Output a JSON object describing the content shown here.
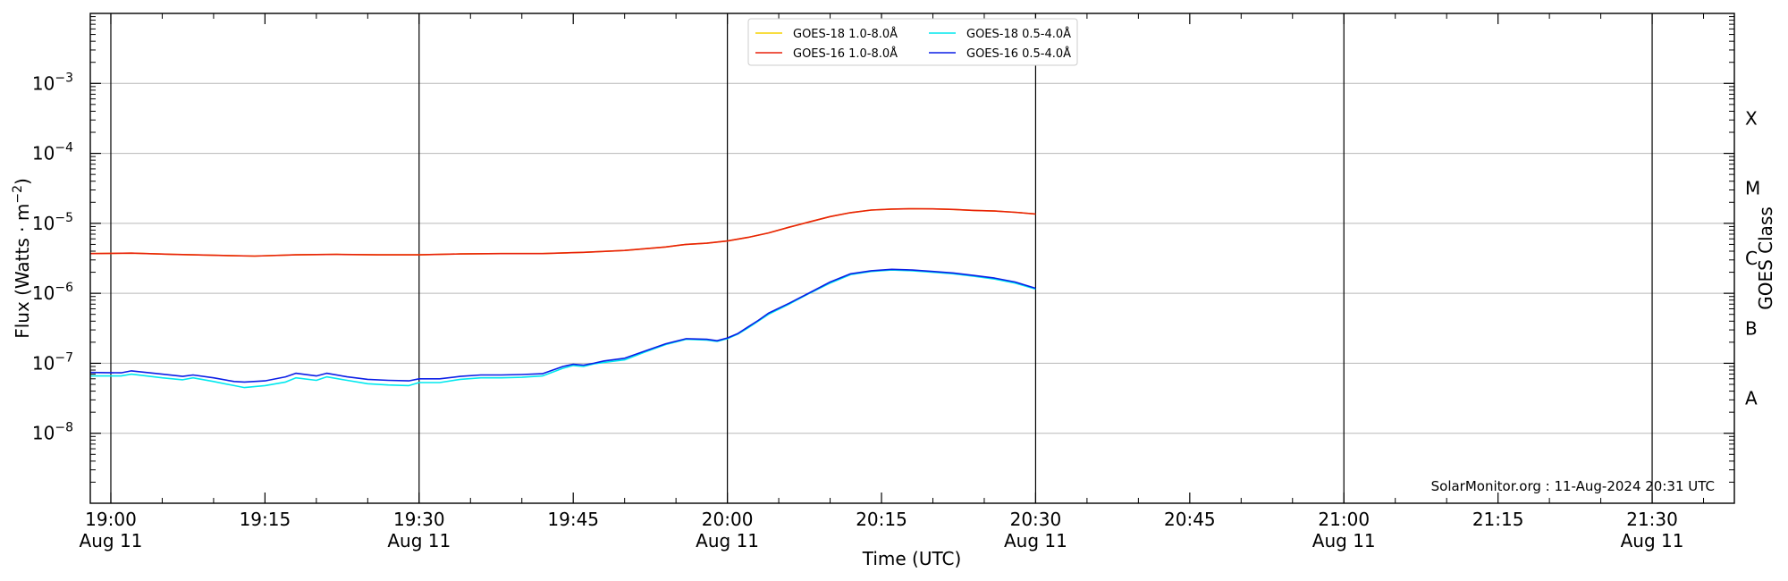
{
  "chart_data": {
    "type": "line",
    "xlabel": "Time (UTC)",
    "ylabel_main": "Flux (Watts · m",
    "ylabel_exp": "−2",
    "ylabel_close": ")",
    "right_label": "GOES Class",
    "watermark": "SolarMonitor.org : 11-Aug-2024 20:31 UTC",
    "yscale": "log",
    "ylim": [
      1e-09,
      0.01
    ],
    "xlim_minutes_from_19h": [
      -2,
      158
    ],
    "grid": "horizontal at decades 1e-8 to 1e-3; vertical lines at half hours",
    "legend_position": "top-center",
    "x_ticks": [
      {
        "l1": "19:00",
        "l2": "Aug 11",
        "minute": 0
      },
      {
        "l1": "19:15",
        "l2": "",
        "minute": 15
      },
      {
        "l1": "19:30",
        "l2": "Aug 11",
        "minute": 30
      },
      {
        "l1": "19:45",
        "l2": "",
        "minute": 45
      },
      {
        "l1": "20:00",
        "l2": "Aug 11",
        "minute": 60
      },
      {
        "l1": "20:15",
        "l2": "",
        "minute": 75
      },
      {
        "l1": "20:30",
        "l2": "Aug 11",
        "minute": 90
      },
      {
        "l1": "20:45",
        "l2": "",
        "minute": 105
      },
      {
        "l1": "21:00",
        "l2": "Aug 11",
        "minute": 120
      },
      {
        "l1": "21:15",
        "l2": "",
        "minute": 135
      },
      {
        "l1": "21:30",
        "l2": "Aug 11",
        "minute": 150
      }
    ],
    "y_ticks": [
      {
        "base": "10",
        "exp": "−8",
        "value": 1e-08
      },
      {
        "base": "10",
        "exp": "−7",
        "value": 1e-07
      },
      {
        "base": "10",
        "exp": "−6",
        "value": 1e-06
      },
      {
        "base": "10",
        "exp": "−5",
        "value": 1e-05
      },
      {
        "base": "10",
        "exp": "−4",
        "value": 0.0001
      },
      {
        "base": "10",
        "exp": "−3",
        "value": 0.001
      }
    ],
    "goes_classes": [
      {
        "label": "A",
        "value": 3.16e-08
      },
      {
        "label": "B",
        "value": 3.16e-07
      },
      {
        "label": "C",
        "value": 3.16e-06
      },
      {
        "label": "M",
        "value": 3.16e-05
      },
      {
        "label": "X",
        "value": 0.000316
      }
    ],
    "legend": [
      {
        "name": "GOES-18 1.0-8.0Å",
        "color": "#f5d200"
      },
      {
        "name": "GOES-16 1.0-8.0Å",
        "color": "#e8200b"
      },
      {
        "name": "GOES-18 0.5-4.0Å",
        "color": "#00e8ee"
      },
      {
        "name": "GOES-16 0.5-4.0Å",
        "color": "#0a1ee6"
      }
    ],
    "series": [
      {
        "name": "GOES-18 1.0-8.0Å",
        "color": "#f5d200",
        "points": [
          [
            -2,
            3.7e-06
          ],
          [
            2,
            3.75e-06
          ],
          [
            6,
            3.6e-06
          ],
          [
            10,
            3.5e-06
          ],
          [
            14,
            3.4e-06
          ],
          [
            18,
            3.55e-06
          ],
          [
            22,
            3.6e-06
          ],
          [
            26,
            3.55e-06
          ],
          [
            30,
            3.55e-06
          ],
          [
            34,
            3.65e-06
          ],
          [
            38,
            3.7e-06
          ],
          [
            42,
            3.7e-06
          ],
          [
            46,
            3.85e-06
          ],
          [
            50,
            4.1e-06
          ],
          [
            54,
            4.6e-06
          ],
          [
            56,
            5e-06
          ],
          [
            58,
            5.2e-06
          ],
          [
            60,
            5.6e-06
          ],
          [
            62,
            6.3e-06
          ],
          [
            64,
            7.3e-06
          ],
          [
            66,
            8.8e-06
          ],
          [
            68,
            1.05e-05
          ],
          [
            70,
            1.25e-05
          ],
          [
            72,
            1.42e-05
          ],
          [
            74,
            1.55e-05
          ],
          [
            76,
            1.6e-05
          ],
          [
            78,
            1.62e-05
          ],
          [
            80,
            1.61e-05
          ],
          [
            82,
            1.58e-05
          ],
          [
            84,
            1.53e-05
          ],
          [
            86,
            1.5e-05
          ],
          [
            88,
            1.44e-05
          ],
          [
            90,
            1.36e-05
          ]
        ]
      },
      {
        "name": "GOES-16 1.0-8.0Å",
        "color": "#e8200b",
        "points": [
          [
            -2,
            3.7e-06
          ],
          [
            2,
            3.75e-06
          ],
          [
            6,
            3.6e-06
          ],
          [
            10,
            3.5e-06
          ],
          [
            14,
            3.4e-06
          ],
          [
            18,
            3.55e-06
          ],
          [
            22,
            3.6e-06
          ],
          [
            26,
            3.55e-06
          ],
          [
            30,
            3.55e-06
          ],
          [
            34,
            3.65e-06
          ],
          [
            38,
            3.7e-06
          ],
          [
            42,
            3.7e-06
          ],
          [
            46,
            3.85e-06
          ],
          [
            50,
            4.1e-06
          ],
          [
            54,
            4.6e-06
          ],
          [
            56,
            5e-06
          ],
          [
            58,
            5.2e-06
          ],
          [
            60,
            5.6e-06
          ],
          [
            62,
            6.3e-06
          ],
          [
            64,
            7.3e-06
          ],
          [
            66,
            8.8e-06
          ],
          [
            68,
            1.05e-05
          ],
          [
            70,
            1.25e-05
          ],
          [
            72,
            1.42e-05
          ],
          [
            74,
            1.55e-05
          ],
          [
            76,
            1.6e-05
          ],
          [
            78,
            1.62e-05
          ],
          [
            80,
            1.61e-05
          ],
          [
            82,
            1.58e-05
          ],
          [
            84,
            1.53e-05
          ],
          [
            86,
            1.5e-05
          ],
          [
            88,
            1.44e-05
          ],
          [
            90,
            1.36e-05
          ]
        ]
      },
      {
        "name": "GOES-18 0.5-4.0Å",
        "color": "#00e8ee",
        "points": [
          [
            -2,
            6.6e-08
          ],
          [
            1,
            6.6e-08
          ],
          [
            2,
            7e-08
          ],
          [
            5,
            6.2e-08
          ],
          [
            7,
            5.8e-08
          ],
          [
            8,
            6.2e-08
          ],
          [
            10,
            5.5e-08
          ],
          [
            12,
            4.8e-08
          ],
          [
            13,
            4.5e-08
          ],
          [
            15,
            4.8e-08
          ],
          [
            17,
            5.4e-08
          ],
          [
            18,
            6.2e-08
          ],
          [
            20,
            5.7e-08
          ],
          [
            21,
            6.4e-08
          ],
          [
            23,
            5.7e-08
          ],
          [
            25,
            5.1e-08
          ],
          [
            27,
            4.9e-08
          ],
          [
            29,
            4.8e-08
          ],
          [
            30,
            5.3e-08
          ],
          [
            32,
            5.3e-08
          ],
          [
            34,
            5.9e-08
          ],
          [
            36,
            6.2e-08
          ],
          [
            38,
            6.2e-08
          ],
          [
            40,
            6.3e-08
          ],
          [
            42,
            6.6e-08
          ],
          [
            44,
            8.5e-08
          ],
          [
            45,
            9.3e-08
          ],
          [
            46,
            9e-08
          ],
          [
            47,
            9.8e-08
          ],
          [
            48,
            1.03e-07
          ],
          [
            50,
            1.12e-07
          ],
          [
            52,
            1.45e-07
          ],
          [
            54,
            1.85e-07
          ],
          [
            56,
            2.2e-07
          ],
          [
            58,
            2.15e-07
          ],
          [
            59,
            2.05e-07
          ],
          [
            60,
            2.25e-07
          ],
          [
            61,
            2.6e-07
          ],
          [
            62,
            3.2e-07
          ],
          [
            63,
            4e-07
          ],
          [
            64,
            5e-07
          ],
          [
            66,
            7e-07
          ],
          [
            68,
            1e-06
          ],
          [
            70,
            1.4e-06
          ],
          [
            72,
            1.85e-06
          ],
          [
            74,
            2.05e-06
          ],
          [
            76,
            2.15e-06
          ],
          [
            78,
            2.1e-06
          ],
          [
            80,
            2e-06
          ],
          [
            82,
            1.9e-06
          ],
          [
            84,
            1.75e-06
          ],
          [
            86,
            1.6e-06
          ],
          [
            88,
            1.4e-06
          ],
          [
            90,
            1.15e-06
          ]
        ]
      },
      {
        "name": "GOES-16 0.5-4.0Å",
        "color": "#0a1ee6",
        "points": [
          [
            -2,
            7.4e-08
          ],
          [
            1,
            7.3e-08
          ],
          [
            2,
            7.8e-08
          ],
          [
            5,
            7e-08
          ],
          [
            7,
            6.5e-08
          ],
          [
            8,
            6.8e-08
          ],
          [
            10,
            6.2e-08
          ],
          [
            12,
            5.5e-08
          ],
          [
            13,
            5.4e-08
          ],
          [
            15,
            5.6e-08
          ],
          [
            17,
            6.4e-08
          ],
          [
            18,
            7.2e-08
          ],
          [
            20,
            6.6e-08
          ],
          [
            21,
            7.2e-08
          ],
          [
            23,
            6.4e-08
          ],
          [
            25,
            5.9e-08
          ],
          [
            27,
            5.7e-08
          ],
          [
            29,
            5.6e-08
          ],
          [
            30,
            6e-08
          ],
          [
            32,
            6e-08
          ],
          [
            34,
            6.5e-08
          ],
          [
            36,
            6.8e-08
          ],
          [
            38,
            6.8e-08
          ],
          [
            40,
            6.9e-08
          ],
          [
            42,
            7.1e-08
          ],
          [
            44,
            9e-08
          ],
          [
            45,
            9.7e-08
          ],
          [
            46,
            9.4e-08
          ],
          [
            47,
            1e-07
          ],
          [
            48,
            1.08e-07
          ],
          [
            50,
            1.18e-07
          ],
          [
            52,
            1.5e-07
          ],
          [
            54,
            1.9e-07
          ],
          [
            56,
            2.25e-07
          ],
          [
            58,
            2.2e-07
          ],
          [
            59,
            2.1e-07
          ],
          [
            60,
            2.3e-07
          ],
          [
            61,
            2.65e-07
          ],
          [
            62,
            3.3e-07
          ],
          [
            63,
            4.1e-07
          ],
          [
            64,
            5.2e-07
          ],
          [
            66,
            7.2e-07
          ],
          [
            68,
            1.02e-06
          ],
          [
            70,
            1.45e-06
          ],
          [
            72,
            1.9e-06
          ],
          [
            74,
            2.1e-06
          ],
          [
            76,
            2.2e-06
          ],
          [
            78,
            2.15e-06
          ],
          [
            80,
            2.05e-06
          ],
          [
            82,
            1.95e-06
          ],
          [
            84,
            1.8e-06
          ],
          [
            86,
            1.65e-06
          ],
          [
            88,
            1.45e-06
          ],
          [
            90,
            1.18e-06
          ]
        ]
      }
    ]
  }
}
